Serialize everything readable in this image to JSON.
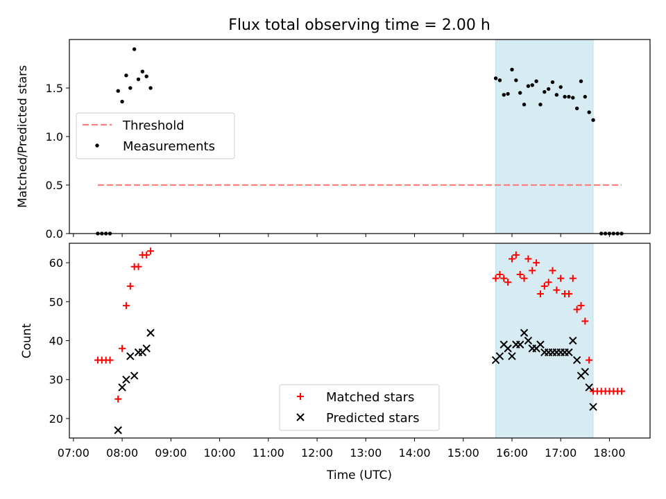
{
  "chart_data": [
    {
      "type": "scatter",
      "title": "Flux total observing time = 2.00 h",
      "ylabel": "Matched/Predicted stars",
      "xlabel": "",
      "xlim": [
        "06:55",
        "18:50"
      ],
      "ylim": [
        0,
        2.0
      ],
      "yticks": [
        0.0,
        0.5,
        1.0,
        1.5
      ],
      "ytick_labels": [
        "0.0",
        "0.5",
        "1.0",
        "1.5"
      ],
      "shaded_region": {
        "from": "15:40",
        "to": "17:40",
        "color": "#add8e6"
      },
      "legend": {
        "position": "center-left",
        "entries": [
          "Threshold",
          "Measurements"
        ]
      },
      "threshold": {
        "name": "Threshold",
        "value": 0.5,
        "from": "07:30",
        "to": "18:15",
        "color": "#ff7f7f",
        "style": "dashed"
      },
      "series": [
        {
          "name": "Measurements",
          "color": "#000000",
          "marker": "dot",
          "points": [
            [
              "07:30",
              0
            ],
            [
              "07:35",
              0
            ],
            [
              "07:40",
              0
            ],
            [
              "07:45",
              0
            ],
            [
              "07:55",
              1.47
            ],
            [
              "08:00",
              1.36
            ],
            [
              "08:05",
              1.63
            ],
            [
              "08:10",
              1.5
            ],
            [
              "08:15",
              1.9
            ],
            [
              "08:20",
              1.59
            ],
            [
              "08:25",
              1.67
            ],
            [
              "08:30",
              1.62
            ],
            [
              "08:35",
              1.5
            ],
            [
              "15:40",
              1.6
            ],
            [
              "15:45",
              1.58
            ],
            [
              "15:50",
              1.43
            ],
            [
              "15:55",
              1.44
            ],
            [
              "16:00",
              1.69
            ],
            [
              "16:05",
              1.58
            ],
            [
              "16:10",
              1.45
            ],
            [
              "16:15",
              1.33
            ],
            [
              "16:20",
              1.52
            ],
            [
              "16:25",
              1.53
            ],
            [
              "16:30",
              1.57
            ],
            [
              "16:35",
              1.33
            ],
            [
              "16:40",
              1.46
            ],
            [
              "16:45",
              1.49
            ],
            [
              "16:50",
              1.56
            ],
            [
              "16:55",
              1.43
            ],
            [
              "17:00",
              1.51
            ],
            [
              "17:05",
              1.41
            ],
            [
              "17:10",
              1.41
            ],
            [
              "17:15",
              1.4
            ],
            [
              "17:20",
              1.29
            ],
            [
              "17:25",
              1.57
            ],
            [
              "17:30",
              1.41
            ],
            [
              "17:35",
              1.25
            ],
            [
              "17:40",
              1.17
            ],
            [
              "17:50",
              0
            ],
            [
              "17:55",
              0
            ],
            [
              "18:00",
              0
            ],
            [
              "18:05",
              0
            ],
            [
              "18:10",
              0
            ],
            [
              "18:15",
              0
            ]
          ]
        }
      ]
    },
    {
      "type": "scatter",
      "title": "",
      "ylabel": "Count",
      "xlabel": "Time (UTC)",
      "xlim": [
        "06:55",
        "18:50"
      ],
      "ylim": [
        15,
        65
      ],
      "yticks": [
        20,
        30,
        40,
        50,
        60
      ],
      "ytick_labels": [
        "20",
        "30",
        "40",
        "50",
        "60"
      ],
      "xticks": [
        "07:00",
        "08:00",
        "09:00",
        "10:00",
        "11:00",
        "12:00",
        "13:00",
        "14:00",
        "15:00",
        "16:00",
        "17:00",
        "18:00"
      ],
      "shaded_region": {
        "from": "15:40",
        "to": "17:40",
        "color": "#add8e6"
      },
      "legend": {
        "position": "lower-center",
        "entries": [
          "Matched stars",
          "Predicted stars"
        ]
      },
      "series": [
        {
          "name": "Matched stars",
          "color": "#ff0000",
          "marker": "plus",
          "points": [
            [
              "07:30",
              35
            ],
            [
              "07:35",
              35
            ],
            [
              "07:40",
              35
            ],
            [
              "07:45",
              35
            ],
            [
              "07:55",
              25
            ],
            [
              "08:00",
              38
            ],
            [
              "08:05",
              49
            ],
            [
              "08:10",
              54
            ],
            [
              "08:15",
              59
            ],
            [
              "08:20",
              59
            ],
            [
              "08:25",
              62
            ],
            [
              "08:30",
              62
            ],
            [
              "08:35",
              63
            ],
            [
              "15:40",
              56
            ],
            [
              "15:45",
              57
            ],
            [
              "15:50",
              56
            ],
            [
              "15:55",
              55
            ],
            [
              "16:00",
              61
            ],
            [
              "16:05",
              62
            ],
            [
              "16:10",
              57
            ],
            [
              "16:15",
              56
            ],
            [
              "16:20",
              61
            ],
            [
              "16:25",
              58
            ],
            [
              "16:30",
              60
            ],
            [
              "16:35",
              52
            ],
            [
              "16:40",
              54
            ],
            [
              "16:45",
              55
            ],
            [
              "16:50",
              58
            ],
            [
              "16:55",
              53
            ],
            [
              "17:00",
              56
            ],
            [
              "17:05",
              52
            ],
            [
              "17:10",
              52
            ],
            [
              "17:15",
              56
            ],
            [
              "17:20",
              48
            ],
            [
              "17:25",
              49
            ],
            [
              "17:30",
              45
            ],
            [
              "17:35",
              35
            ],
            [
              "17:40",
              27
            ],
            [
              "17:45",
              27
            ],
            [
              "17:50",
              27
            ],
            [
              "17:55",
              27
            ],
            [
              "18:00",
              27
            ],
            [
              "18:05",
              27
            ],
            [
              "18:10",
              27
            ],
            [
              "18:15",
              27
            ]
          ]
        },
        {
          "name": "Predicted stars",
          "color": "#000000",
          "marker": "x",
          "points": [
            [
              "07:55",
              17
            ],
            [
              "08:00",
              28
            ],
            [
              "08:05",
              30
            ],
            [
              "08:10",
              36
            ],
            [
              "08:15",
              31
            ],
            [
              "08:20",
              37
            ],
            [
              "08:25",
              37
            ],
            [
              "08:30",
              38
            ],
            [
              "08:35",
              42
            ],
            [
              "15:40",
              35
            ],
            [
              "15:45",
              36
            ],
            [
              "15:50",
              39
            ],
            [
              "15:55",
              38
            ],
            [
              "16:00",
              36
            ],
            [
              "16:05",
              39
            ],
            [
              "16:10",
              39
            ],
            [
              "16:15",
              42
            ],
            [
              "16:20",
              40
            ],
            [
              "16:25",
              38
            ],
            [
              "16:30",
              38
            ],
            [
              "16:35",
              39
            ],
            [
              "16:40",
              37
            ],
            [
              "16:45",
              37
            ],
            [
              "16:50",
              37
            ],
            [
              "16:55",
              37
            ],
            [
              "17:00",
              37
            ],
            [
              "17:05",
              37
            ],
            [
              "17:10",
              37
            ],
            [
              "17:15",
              40
            ],
            [
              "17:20",
              35
            ],
            [
              "17:25",
              31
            ],
            [
              "17:30",
              32
            ],
            [
              "17:35",
              28
            ],
            [
              "17:40",
              23
            ]
          ]
        }
      ]
    }
  ]
}
